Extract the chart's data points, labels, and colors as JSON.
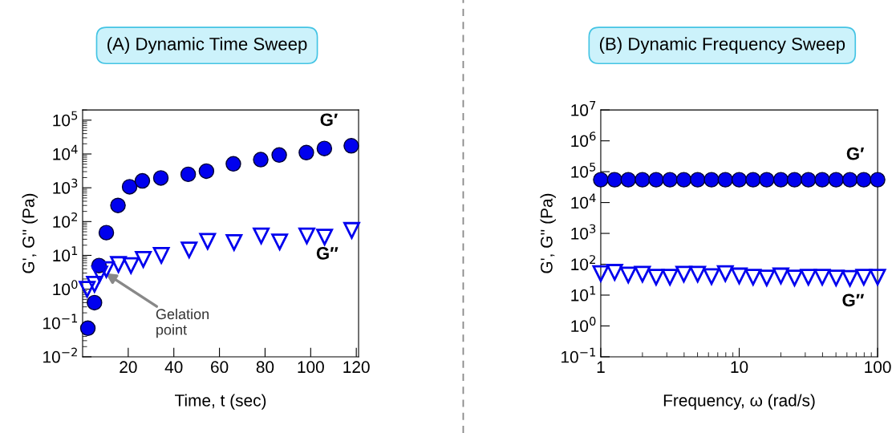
{
  "chart_data": [
    {
      "type": "scatter",
      "title": "(A) Dynamic Time Sweep",
      "xlabel": "Time, t (sec)",
      "ylabel": "G', G'' (Pa)",
      "log": "y",
      "grid": false,
      "legend": false,
      "line_style": "none",
      "xlim": [
        0,
        121
      ],
      "xticks": [
        20,
        40,
        60,
        80,
        100,
        120
      ],
      "ylim": [
        0.01,
        200000
      ],
      "yticks": [
        {
          "value": 0.01,
          "label": "10$^{−2}$"
        },
        {
          "value": 0.1,
          "label": "10$^{−1}$"
        },
        {
          "value": 1,
          "label": "10$^{0}$"
        },
        {
          "value": 10,
          "label": "10$^{1}$"
        },
        {
          "value": 100,
          "label": "10$^{2}$"
        },
        {
          "value": 1000,
          "label": "10$^{3}$"
        },
        {
          "value": 10000,
          "label": "10$^{4}$"
        },
        {
          "value": 100000,
          "label": "10$^{5}$"
        }
      ],
      "series": [
        {
          "name": "G′",
          "color": "#0000ee",
          "marker": "circle",
          "x": [
            2.3,
            5.2,
            7.2,
            10.4,
            15.5,
            20.6,
            26.2,
            34.3,
            46.3,
            54.3,
            66.1,
            78.1,
            86.2,
            98.1,
            106,
            117.8
          ],
          "values": [
            0.07,
            0.4,
            5,
            47,
            300,
            1070,
            1600,
            1950,
            2500,
            3100,
            5100,
            6800,
            9300,
            11000,
            14500,
            17500
          ]
        },
        {
          "name": "G″",
          "color": "#0000ee",
          "marker": "triangle",
          "x": [
            2.0,
            5.2,
            7.5,
            10.4,
            15.7,
            21.2,
            26.6,
            34.5,
            46.7,
            54.8,
            66.4,
            78.3,
            86.4,
            98.3,
            106.1,
            118
          ],
          "values": [
            1.0,
            1.4,
            2.8,
            3.8,
            5.4,
            5,
            7.6,
            10,
            14.5,
            26,
            24,
            38,
            25,
            38,
            35,
            55
          ]
        }
      ],
      "annotations": [
        {
          "text": "Gelation\npoint",
          "x": 10,
          "y": 3
        }
      ]
    },
    {
      "type": "scatter",
      "title": "(B) Dynamic Frequency Sweep",
      "xlabel": "Frequency, ω (rad/s)",
      "ylabel": "G', G'' (Pa)",
      "log": "xy",
      "grid": false,
      "legend": false,
      "line_style": "none",
      "xlim": [
        1,
        100
      ],
      "xticks": [
        1,
        10,
        100
      ],
      "ylim": [
        0.1,
        10000000
      ],
      "yticks": [
        {
          "value": 0.1,
          "label": "10$^{−1}$"
        },
        {
          "value": 1,
          "label": "10$^{0}$"
        },
        {
          "value": 10,
          "label": "10$^{1}$"
        },
        {
          "value": 100,
          "label": "10$^{2}$"
        },
        {
          "value": 1000,
          "label": "10$^{3}$"
        },
        {
          "value": 10000,
          "label": "10$^{4}$"
        },
        {
          "value": 100000,
          "label": "10$^{5}$"
        },
        {
          "value": 1000000,
          "label": "10$^{6}$"
        },
        {
          "value": 10000000,
          "label": "10$^{7}$"
        }
      ],
      "x": [
        1,
        1.26,
        1.58,
        2,
        2.51,
        3.16,
        3.98,
        5.01,
        6.31,
        7.94,
        10,
        12.6,
        15.8,
        20,
        25.1,
        31.6,
        39.8,
        50.1,
        63.1,
        79.4,
        100
      ],
      "series": [
        {
          "name": "G′",
          "color": "#0000ee",
          "marker": "circle",
          "values": [
            55000,
            55000,
            55000,
            55000,
            55000,
            55000,
            55000,
            55000,
            55000,
            55000,
            55000,
            55000,
            55000,
            55000,
            55000,
            55000,
            55000,
            55000,
            55000,
            55000,
            55000
          ]
        },
        {
          "name": "G″",
          "color": "#0000ee",
          "marker": "triangle",
          "values": [
            50,
            55,
            45,
            48,
            38,
            38,
            48,
            48,
            40,
            50,
            42,
            38,
            36,
            42,
            36,
            38,
            38,
            36,
            35,
            38,
            38
          ]
        }
      ]
    }
  ]
}
